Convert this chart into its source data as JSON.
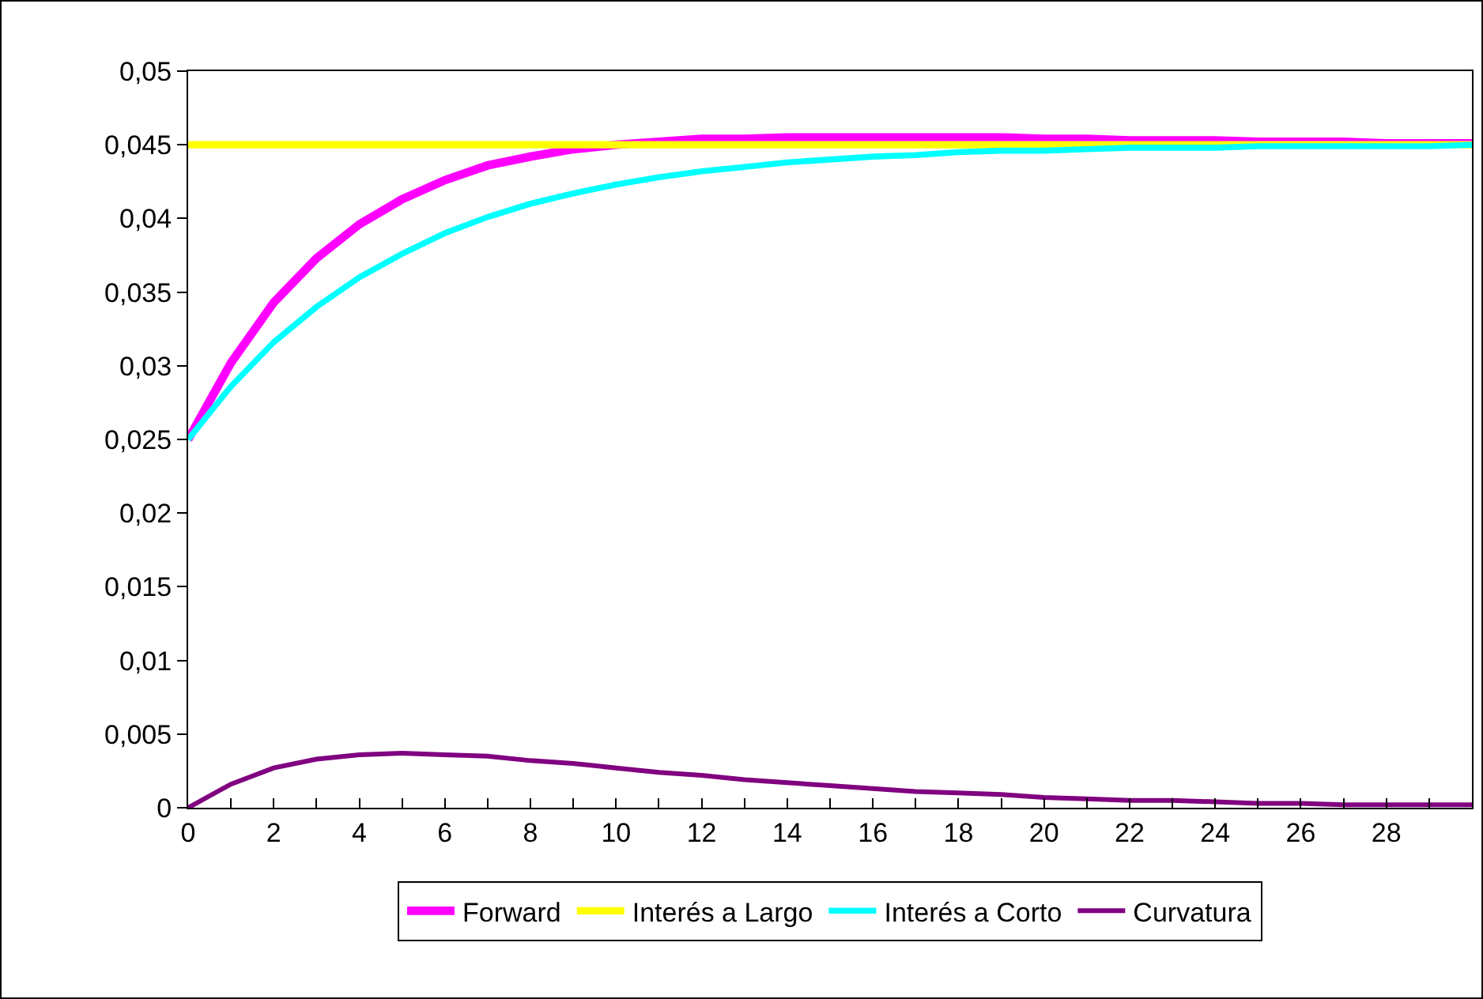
{
  "chart_data": {
    "type": "line",
    "x": [
      0,
      1,
      2,
      3,
      4,
      5,
      6,
      7,
      8,
      9,
      10,
      11,
      12,
      13,
      14,
      15,
      16,
      17,
      18,
      19,
      20,
      21,
      22,
      23,
      24,
      25,
      26,
      27,
      28,
      29,
      30
    ],
    "series": [
      {
        "name": "Forward",
        "color": "#ff00ff",
        "values": [
          0.025,
          0.0302,
          0.0343,
          0.0373,
          0.0396,
          0.0413,
          0.0426,
          0.0436,
          0.0442,
          0.0447,
          0.045,
          0.0452,
          0.0454,
          0.0454,
          0.0455,
          0.0455,
          0.0455,
          0.0455,
          0.0455,
          0.0455,
          0.0454,
          0.0454,
          0.0453,
          0.0453,
          0.0453,
          0.0452,
          0.0452,
          0.0452,
          0.0451,
          0.0451,
          0.0451
        ]
      },
      {
        "name": "Interés a Largo",
        "color": "#ffff00",
        "values": [
          0.045,
          0.045,
          0.045,
          0.045,
          0.045,
          0.045,
          0.045,
          0.045,
          0.045,
          0.045,
          0.045,
          0.045,
          0.045,
          0.045,
          0.045,
          0.045,
          0.045,
          0.045,
          0.045,
          0.045,
          0.045,
          0.045,
          0.045,
          0.045,
          0.045,
          0.045,
          0.045,
          0.045,
          0.045,
          0.045,
          0.045
        ]
      },
      {
        "name": "Interés a Corto",
        "color": "#00ffff",
        "values": [
          0.025,
          0.0286,
          0.0316,
          0.034,
          0.036,
          0.0376,
          0.039,
          0.0401,
          0.041,
          0.0417,
          0.0423,
          0.0428,
          0.0432,
          0.0435,
          0.0438,
          0.044,
          0.0442,
          0.0443,
          0.0445,
          0.0446,
          0.0446,
          0.0447,
          0.0448,
          0.0448,
          0.0448,
          0.0449,
          0.0449,
          0.0449,
          0.0449,
          0.0449,
          0.045
        ]
      },
      {
        "name": "Curvatura",
        "color": "#800080",
        "values": [
          0,
          0.0016,
          0.0027,
          0.0033,
          0.0036,
          0.0037,
          0.0036,
          0.0035,
          0.0032,
          0.003,
          0.0027,
          0.0024,
          0.0022,
          0.0019,
          0.0017,
          0.0015,
          0.0013,
          0.0011,
          0.001,
          0.0009,
          0.0007,
          0.0006,
          0.0005,
          0.0005,
          0.0004,
          0.0003,
          0.0003,
          0.0002,
          0.0002,
          0.0002,
          0.0002
        ]
      }
    ],
    "xlim": [
      0,
      30
    ],
    "xticks": [
      0,
      2,
      4,
      6,
      8,
      10,
      12,
      14,
      16,
      18,
      20,
      22,
      24,
      26,
      28
    ],
    "ylim": [
      0,
      0.05
    ],
    "yticks": [
      {
        "value": 0,
        "label": "0"
      },
      {
        "value": 0.005,
        "label": "0,005"
      },
      {
        "value": 0.01,
        "label": "0,01"
      },
      {
        "value": 0.015,
        "label": "0,015"
      },
      {
        "value": 0.02,
        "label": "0,02"
      },
      {
        "value": 0.025,
        "label": "0,025"
      },
      {
        "value": 0.03,
        "label": "0,03"
      },
      {
        "value": 0.035,
        "label": "0,035"
      },
      {
        "value": 0.04,
        "label": "0,04"
      },
      {
        "value": 0.045,
        "label": "0,045"
      },
      {
        "value": 0.05,
        "label": "0,05"
      }
    ],
    "grid": false,
    "legend": "bottom",
    "marker": "none",
    "line_style": "solid"
  }
}
